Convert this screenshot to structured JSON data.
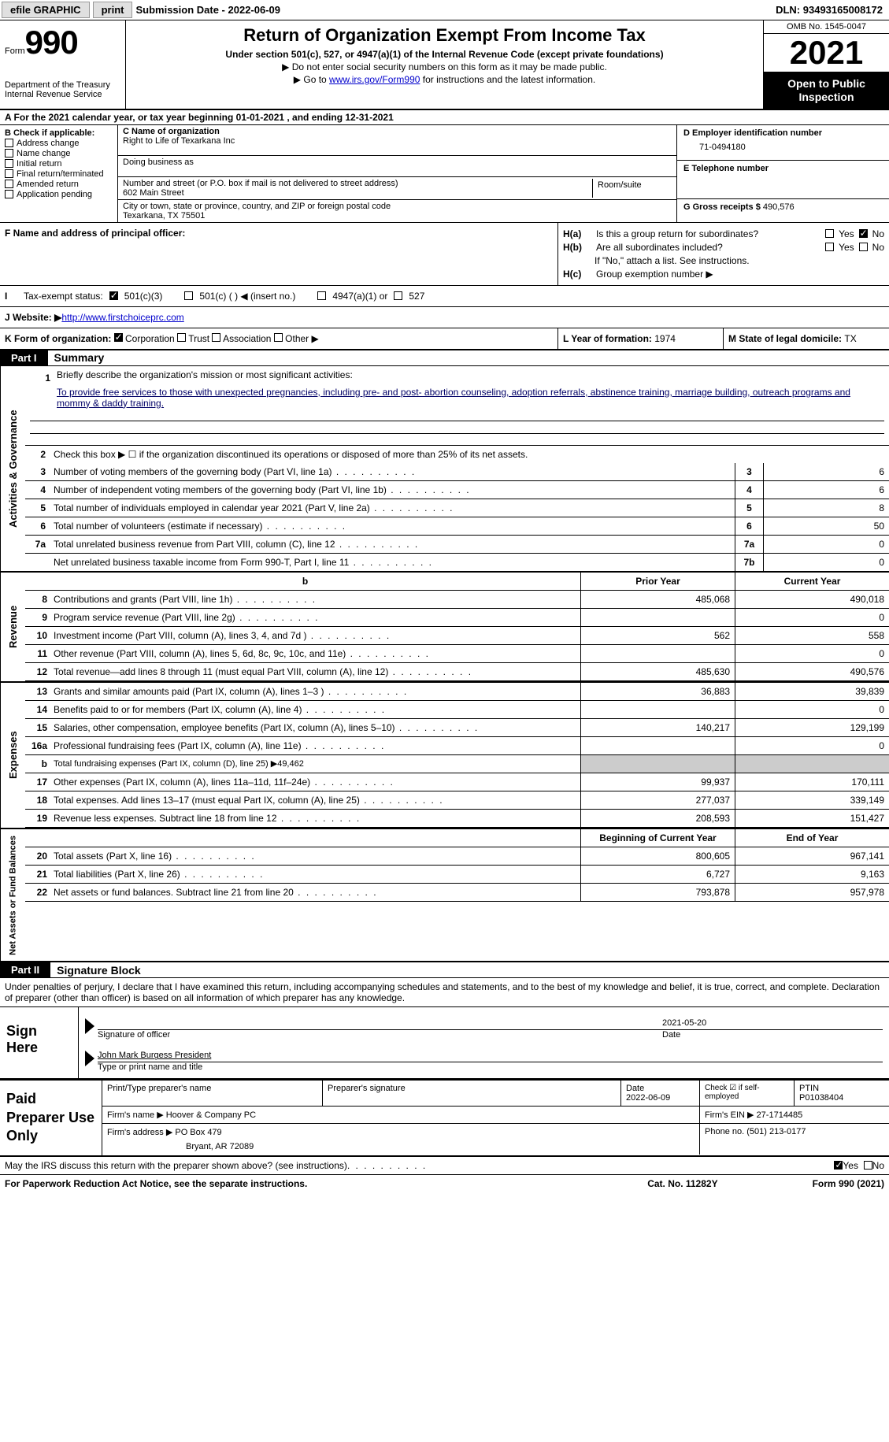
{
  "top": {
    "efile": "efile GRAPHIC",
    "print": "print",
    "sub_label": "Submission Date - ",
    "sub_date": "2022-06-09",
    "dln_label": "DLN: ",
    "dln": "93493165008172"
  },
  "header": {
    "form_word": "Form",
    "form_num": "990",
    "dept": "Department of the Treasury",
    "irs": "Internal Revenue Service",
    "title": "Return of Organization Exempt From Income Tax",
    "sub1": "Under section 501(c), 527, or 4947(a)(1) of the Internal Revenue Code (except private foundations)",
    "sub2": "▶ Do not enter social security numbers on this form as it may be made public.",
    "sub3_pre": "▶ Go to ",
    "sub3_link": "www.irs.gov/Form990",
    "sub3_post": " for instructions and the latest information.",
    "omb": "OMB No. 1545-0047",
    "year": "2021",
    "inspect1": "Open to Public",
    "inspect2": "Inspection"
  },
  "rowA": "A For the 2021 calendar year, or tax year beginning 01-01-2021   , and ending 12-31-2021",
  "sectionB": {
    "check_label": "B Check if applicable:",
    "opts": [
      "Address change",
      "Name change",
      "Initial return",
      "Final return/terminated",
      "Amended return",
      "Application pending"
    ],
    "c_label": "C Name of organization",
    "org_name": "Right to Life of Texarkana Inc",
    "dba": "Doing business as",
    "addr_label": "Number and street (or P.O. box if mail is not delivered to street address)",
    "room": "Room/suite",
    "addr": "602 Main Street",
    "city_label": "City or town, state or province, country, and ZIP or foreign postal code",
    "city": "Texarkana, TX  75501",
    "d_label": "D Employer identification number",
    "ein": "71-0494180",
    "e_label": "E Telephone number",
    "g_label": "G Gross receipts $ ",
    "g_val": "490,576"
  },
  "sectionFH": {
    "f_label": "F Name and address of principal officer:",
    "ha": "Is this a group return for subordinates?",
    "hb": "Are all subordinates included?",
    "hb_note": "If \"No,\" attach a list. See instructions.",
    "hc": "Group exemption number ▶",
    "yes": "Yes",
    "no": "No"
  },
  "rowI": {
    "label": "Tax-exempt status:",
    "o1": "501(c)(3)",
    "o2": "501(c) (  ) ◀ (insert no.)",
    "o3": "4947(a)(1) or",
    "o4": "527"
  },
  "rowJ": {
    "label": "J   Website: ▶  ",
    "url": "http://www.firstchoiceprc.com"
  },
  "rowK": {
    "k": "K Form of organization:",
    "corp": "Corporation",
    "trust": "Trust",
    "assoc": "Association",
    "other": "Other ▶",
    "l": "L Year of formation: ",
    "l_val": "1974",
    "m": "M State of legal domicile: ",
    "m_val": "TX"
  },
  "parts": {
    "p1": "Part I",
    "p1_title": "Summary",
    "p2": "Part II",
    "p2_title": "Signature Block"
  },
  "summary": {
    "l1_label": "Briefly describe the organization's mission or most significant activities:",
    "l1_text": "To provide free services to those with unexpected pregnancies, including pre- and post- abortion counseling, adoption referrals, abstinence training, marriage building, outreach programs and mommy & daddy training.",
    "l2": "Check this box ▶ ☐  if the organization discontinued its operations or disposed of more than 25% of its net assets.",
    "lines_a": [
      {
        "n": "3",
        "t": "Number of voting members of the governing body (Part VI, line 1a)",
        "box": "3",
        "v": "6"
      },
      {
        "n": "4",
        "t": "Number of independent voting members of the governing body (Part VI, line 1b)",
        "box": "4",
        "v": "6"
      },
      {
        "n": "5",
        "t": "Total number of individuals employed in calendar year 2021 (Part V, line 2a)",
        "box": "5",
        "v": "8"
      },
      {
        "n": "6",
        "t": "Total number of volunteers (estimate if necessary)",
        "box": "6",
        "v": "50"
      },
      {
        "n": "7a",
        "t": "Total unrelated business revenue from Part VIII, column (C), line 12",
        "box": "7a",
        "v": "0"
      },
      {
        "n": "",
        "t": "Net unrelated business taxable income from Form 990-T, Part I, line 11",
        "box": "7b",
        "v": "0"
      }
    ],
    "prior": "Prior Year",
    "current": "Current Year",
    "revenue": [
      {
        "n": "8",
        "t": "Contributions and grants (Part VIII, line 1h)",
        "p": "485,068",
        "c": "490,018"
      },
      {
        "n": "9",
        "t": "Program service revenue (Part VIII, line 2g)",
        "p": "",
        "c": "0"
      },
      {
        "n": "10",
        "t": "Investment income (Part VIII, column (A), lines 3, 4, and 7d )",
        "p": "562",
        "c": "558"
      },
      {
        "n": "11",
        "t": "Other revenue (Part VIII, column (A), lines 5, 6d, 8c, 9c, 10c, and 11e)",
        "p": "",
        "c": "0"
      },
      {
        "n": "12",
        "t": "Total revenue—add lines 8 through 11 (must equal Part VIII, column (A), line 12)",
        "p": "485,630",
        "c": "490,576"
      }
    ],
    "expenses": [
      {
        "n": "13",
        "t": "Grants and similar amounts paid (Part IX, column (A), lines 1–3 )",
        "p": "36,883",
        "c": "39,839"
      },
      {
        "n": "14",
        "t": "Benefits paid to or for members (Part IX, column (A), line 4)",
        "p": "",
        "c": "0"
      },
      {
        "n": "15",
        "t": "Salaries, other compensation, employee benefits (Part IX, column (A), lines 5–10)",
        "p": "140,217",
        "c": "129,199"
      },
      {
        "n": "16a",
        "t": "Professional fundraising fees (Part IX, column (A), line 11e)",
        "p": "",
        "c": "0"
      },
      {
        "n": "b",
        "t": "Total fundraising expenses (Part IX, column (D), line 25) ▶49,462",
        "p": "shade",
        "c": "shade"
      },
      {
        "n": "17",
        "t": "Other expenses (Part IX, column (A), lines 11a–11d, 11f–24e)",
        "p": "99,937",
        "c": "170,111"
      },
      {
        "n": "18",
        "t": "Total expenses. Add lines 13–17 (must equal Part IX, column (A), line 25)",
        "p": "277,037",
        "c": "339,149"
      },
      {
        "n": "19",
        "t": "Revenue less expenses. Subtract line 18 from line 12",
        "p": "208,593",
        "c": "151,427"
      }
    ],
    "begin": "Beginning of Current Year",
    "end": "End of Year",
    "net": [
      {
        "n": "20",
        "t": "Total assets (Part X, line 16)",
        "p": "800,605",
        "c": "967,141"
      },
      {
        "n": "21",
        "t": "Total liabilities (Part X, line 26)",
        "p": "6,727",
        "c": "9,163"
      },
      {
        "n": "22",
        "t": "Net assets or fund balances. Subtract line 21 from line 20",
        "p": "793,878",
        "c": "957,978"
      }
    ]
  },
  "tabs": {
    "gov": "Activities & Governance",
    "rev": "Revenue",
    "exp": "Expenses",
    "net": "Net Assets or Fund Balances"
  },
  "sig": {
    "decl": "Under penalties of perjury, I declare that I have examined this return, including accompanying schedules and statements, and to the best of my knowledge and belief, it is true, correct, and complete. Declaration of preparer (other than officer) is based on all information of which preparer has any knowledge.",
    "sign_here": "Sign Here",
    "sig_officer": "Signature of officer",
    "date": "Date",
    "date_val": "2021-05-20",
    "name": "John Mark Burgess  President",
    "name_label": "Type or print name and title"
  },
  "prep": {
    "label": "Paid Preparer Use Only",
    "print_name": "Print/Type preparer's name",
    "prep_sig": "Preparer's signature",
    "date_l": "Date",
    "date_v": "2022-06-09",
    "check_l": "Check ☑ if self-employed",
    "ptin_l": "PTIN",
    "ptin_v": "P01038404",
    "firm_name_l": "Firm's name   ▶ ",
    "firm_name": "Hoover & Company PC",
    "firm_ein_l": "Firm's EIN ▶ ",
    "firm_ein": "27-1714485",
    "firm_addr_l": "Firm's address ▶ ",
    "firm_addr1": "PO Box 479",
    "firm_addr2": "Bryant, AR  72089",
    "phone_l": "Phone no. ",
    "phone": "(501) 213-0177"
  },
  "footer": {
    "discuss": "May the IRS discuss this return with the preparer shown above? (see instructions)",
    "yes": "Yes",
    "no": "No",
    "paperwork": "For Paperwork Reduction Act Notice, see the separate instructions.",
    "cat": "Cat. No. 11282Y",
    "form": "Form 990 (2021)"
  }
}
